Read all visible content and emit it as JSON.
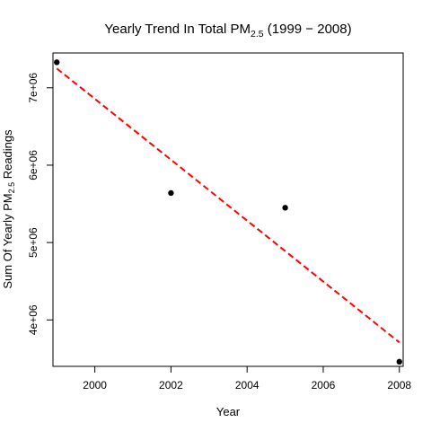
{
  "chart_data": {
    "type": "scatter",
    "title": {
      "prefix": "Yearly Trend In Total PM",
      "subscript": "2.5",
      "suffix": " (1999 − 2008)"
    },
    "xlabel": "Year",
    "ylabel": {
      "prefix": "Sum Of Yearly PM",
      "subscript": "2.5",
      "suffix": " Readings"
    },
    "xlim": [
      1998.9,
      2008.1
    ],
    "ylim": [
      3400000,
      7450000
    ],
    "x_ticks": [
      {
        "value": 2000,
        "label": "2000"
      },
      {
        "value": 2002,
        "label": "2002"
      },
      {
        "value": 2004,
        "label": "2004"
      },
      {
        "value": 2006,
        "label": "2006"
      },
      {
        "value": 2008,
        "label": "2008"
      }
    ],
    "y_ticks": [
      {
        "value": 4000000,
        "label": "4e+06"
      },
      {
        "value": 5000000,
        "label": "5e+06"
      },
      {
        "value": 6000000,
        "label": "6e+06"
      },
      {
        "value": 7000000,
        "label": "7e+06"
      }
    ],
    "points": [
      {
        "x": 1999,
        "y": 7330000
      },
      {
        "x": 2002,
        "y": 5640000
      },
      {
        "x": 2005,
        "y": 5450000
      },
      {
        "x": 2008,
        "y": 3460000
      }
    ],
    "trend_line": {
      "x": [
        1999,
        2008
      ],
      "y": [
        7250000,
        3710000
      ],
      "color": "#ff0000",
      "style": "dashed"
    },
    "point_color": "#000000",
    "grid": false,
    "legend": "none"
  }
}
